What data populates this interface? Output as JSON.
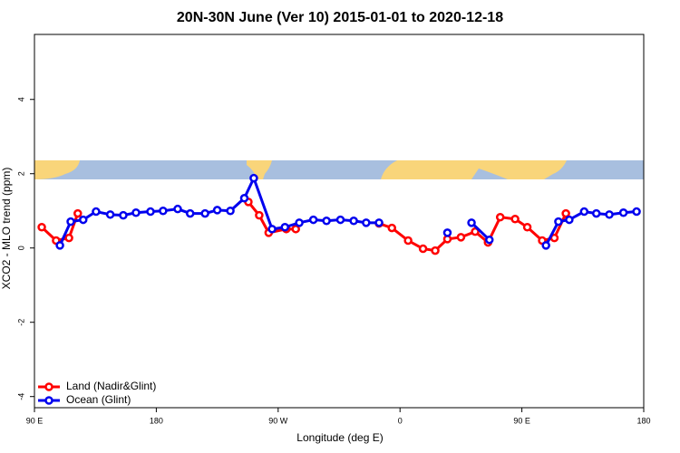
{
  "chart_data": {
    "type": "line",
    "title": "20N-30N June (Ver 10)   2015-01-01 to 2020-12-18",
    "x_label": "Longitude (deg E)",
    "y_label": "XCO2 - MLO trend (ppm)",
    "xlim": [
      90,
      540
    ],
    "xticks": [
      {
        "value": 90,
        "label": "90 E"
      },
      180,
      {
        "value": 270,
        "label": "90 W"
      },
      {
        "value": 360,
        "label": "0"
      },
      {
        "value": 450,
        "label": "90 E"
      },
      {
        "value": 540,
        "label": "180"
      }
    ],
    "ylim": [
      -4.3,
      5.75
    ],
    "yticks": [
      -4,
      -2,
      0,
      2,
      4
    ],
    "legend": "bottom-left",
    "series": [
      {
        "name": "Land (Nadir&Glint)",
        "color": "#ff0000",
        "x": [
          95.4,
          106,
          115.5,
          122,
          null,
          248,
          256,
          263,
          276,
          283,
          null,
          344.5,
          354,
          366,
          377,
          386,
          395,
          405,
          415.5,
          425,
          434,
          445,
          454,
          465,
          474,
          482.5
        ],
        "values": [
          0.56,
          0.2,
          0.27,
          0.93,
          null,
          1.24,
          0.88,
          0.41,
          0.51,
          0.51,
          null,
          0.66,
          0.54,
          0.2,
          -0.02,
          -0.07,
          0.24,
          0.29,
          0.44,
          0.15,
          0.83,
          0.78,
          0.56,
          0.2,
          0.27,
          0.93
        ]
      },
      {
        "name": "Ocean (Glint)",
        "color": "#0000ee",
        "x": [
          108.8,
          116.8,
          126,
          135.5,
          146,
          155.6,
          165,
          175.7,
          185,
          195.8,
          205,
          216,
          225,
          234.7,
          245,
          252,
          265.5,
          275,
          285.6,
          296,
          305.7,
          316,
          325.8,
          335,
          344.5,
          null,
          395,
          null,
          412.8,
          426,
          null,
          467.8,
          477,
          485,
          496,
          505,
          514.6,
          525,
          534.7
        ],
        "values": [
          0.07,
          0.71,
          0.76,
          0.98,
          0.9,
          0.88,
          0.95,
          0.98,
          1.0,
          1.05,
          0.93,
          0.93,
          1.02,
          1.0,
          1.34,
          1.88,
          0.51,
          0.56,
          0.68,
          0.76,
          0.73,
          0.76,
          0.73,
          0.68,
          0.68,
          null,
          0.41,
          null,
          0.68,
          0.22,
          null,
          0.07,
          0.71,
          0.76,
          0.98,
          0.93,
          0.9,
          0.95,
          0.98
        ]
      }
    ]
  }
}
